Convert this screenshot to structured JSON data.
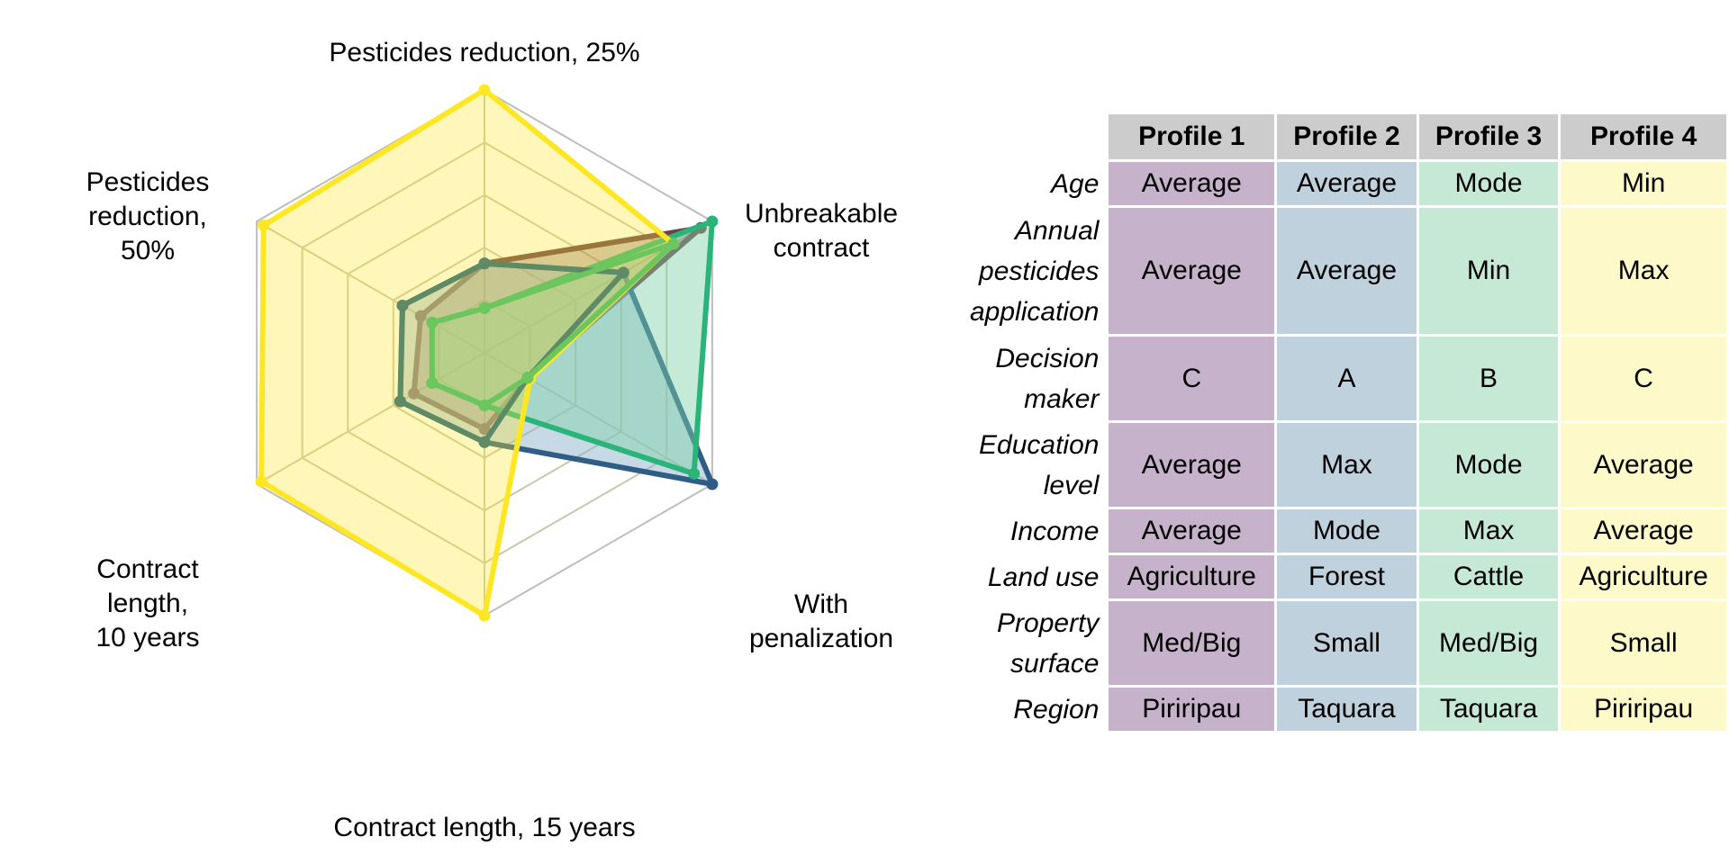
{
  "chart_data": [
    {
      "type": "radar",
      "axes": [
        "Pesticides reduction, 25%",
        "Unbreakable contract",
        "With penalization",
        "Contract length, 15 years",
        "Contract length, 10 years",
        "Pesticides reduction, 50%"
      ],
      "axis_label_lines": [
        [
          "Pesticides reduction, 25%"
        ],
        [
          "Unbreakable",
          "contract"
        ],
        [
          "With",
          "penalization"
        ],
        [
          "Contract length, 15 years"
        ],
        [
          "Contract",
          "length,",
          "10 years"
        ],
        [
          "Pesticides",
          "reduction,",
          "50%"
        ]
      ],
      "rings": 5,
      "range": [
        0,
        1
      ],
      "grid": true,
      "series": [
        {
          "values": [
            0.34,
            0.95,
            0.19,
            0.29,
            0.31,
            0.28
          ],
          "stroke": "#6d4148",
          "fill": "#6d4148",
          "fill_opacity": 0.35
        },
        {
          "values": [
            0.34,
            0.61,
            1.0,
            0.34,
            0.37,
            0.36
          ],
          "stroke": "#2f5d86",
          "fill": "#8fb3cc",
          "fill_opacity": 0.5
        },
        {
          "values": [
            0.17,
            1.0,
            0.92,
            0.2,
            0.23,
            0.23
          ],
          "stroke": "#2bb47a",
          "fill": "#7fd3a8",
          "fill_opacity": 0.45
        },
        {
          "values": [
            1.0,
            0.83,
            0.2,
            1.0,
            0.98,
            0.97
          ],
          "stroke": "#fde725",
          "fill": "#fde725",
          "fill_opacity": 0.32
        }
      ],
      "overlay_series": [
        {
          "values": [
            0.34,
            0.61,
            0.19,
            0.34,
            0.37,
            0.36
          ],
          "stroke": "#5e8a66"
        },
        {
          "values": [
            0.17,
            0.83,
            0.19,
            0.2,
            0.23,
            0.23
          ],
          "stroke": "#6cc65e"
        }
      ]
    },
    {
      "type": "table",
      "columns": [
        "Profile 1",
        "Profile 2",
        "Profile 3",
        "Profile 4"
      ],
      "column_colors": [
        "#c7b2cc",
        "#bfd1dd",
        "#c6e9d6",
        "#fef9c8"
      ],
      "header_color": "#cccccc",
      "rows": [
        {
          "label": "Age",
          "label_lines": [
            "Age"
          ],
          "values": [
            "Average",
            "Average",
            "Mode",
            "Min"
          ]
        },
        {
          "label": "Annual pesticides application",
          "label_lines": [
            "Annual",
            "pesticides",
            "application"
          ],
          "values": [
            "Average",
            "Average",
            "Min",
            "Max"
          ]
        },
        {
          "label": "Decision maker",
          "label_lines": [
            "Decision",
            "maker"
          ],
          "values": [
            "C",
            "A",
            "B",
            "C"
          ]
        },
        {
          "label": "Education level",
          "label_lines": [
            "Education",
            "level"
          ],
          "values": [
            "Average",
            "Max",
            "Mode",
            "Average"
          ]
        },
        {
          "label": "Income",
          "label_lines": [
            "Income"
          ],
          "values": [
            "Average",
            "Mode",
            "Max",
            "Average"
          ]
        },
        {
          "label": "Land use",
          "label_lines": [
            "Land use"
          ],
          "values": [
            "Agriculture",
            "Forest",
            "Cattle",
            "Agriculture"
          ]
        },
        {
          "label": "Property surface",
          "label_lines": [
            "Property",
            "surface"
          ],
          "values": [
            "Med/Big",
            "Small",
            "Med/Big",
            "Small"
          ]
        },
        {
          "label": "Region",
          "label_lines": [
            "Region"
          ],
          "values": [
            "Piriripau",
            "Taquara",
            "Taquara",
            "Piriripau"
          ]
        }
      ]
    }
  ]
}
